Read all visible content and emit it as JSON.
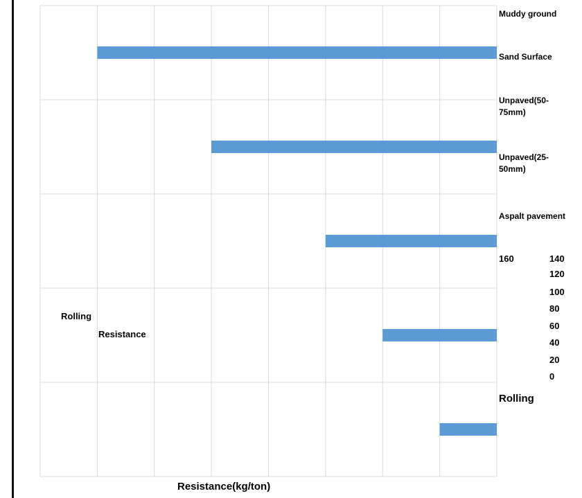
{
  "chart_data": {
    "type": "bar",
    "orientation": "horizontal",
    "categories": [
      "Muddy ground",
      "Sand Surface",
      "Unpaved(50-75mm)",
      "Unpaved(25-50mm)",
      "Aspalt pavement"
    ],
    "category_labels": [
      "Muddy ground",
      "Sand Surface",
      "Unpaved(50-\n75mm)",
      "Unpaved(25-\n50mm)",
      "Aspalt pavement"
    ],
    "values": [
      140,
      100,
      60,
      40,
      20
    ],
    "xlim": [
      160,
      0
    ],
    "x_axis_reversed": true,
    "ticks": [
      "160",
      "140",
      "120",
      "100",
      "80",
      "60",
      "40",
      "20",
      "0"
    ],
    "xlabel_parts": [
      "Rolling",
      "Resistance(kg/ton)"
    ],
    "ylabel_parts": [
      "Rolling",
      "Resistance"
    ],
    "bar_color": "#5b9bd5",
    "grid": true,
    "gridline_color": "#d9d9d9"
  }
}
